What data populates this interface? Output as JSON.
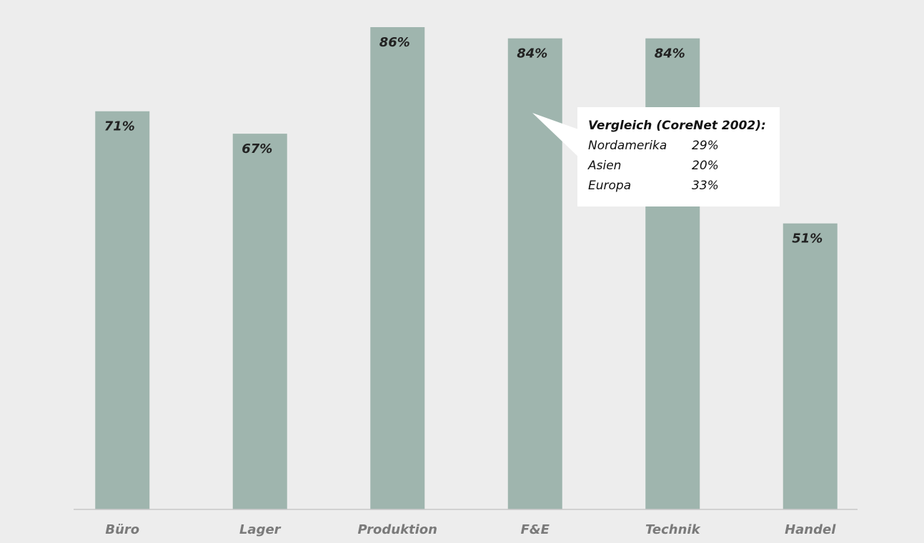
{
  "chart_data": {
    "type": "bar",
    "categories": [
      "Büro",
      "Lager",
      "Produktion",
      "F&E",
      "Technik",
      "Handel"
    ],
    "values": [
      71,
      67,
      86,
      84,
      84,
      51
    ],
    "value_labels": [
      "71%",
      "67%",
      "86%",
      "84%",
      "84%",
      "51%"
    ],
    "color": "#9fb5ae",
    "annotation": {
      "title": "Vergleich (CoreNet 2002):",
      "rows": [
        {
          "label": "Nordamerika",
          "value": "29%"
        },
        {
          "label": "Asien",
          "value": "20%"
        },
        {
          "label": "Europa",
          "value": "33%"
        }
      ]
    }
  }
}
